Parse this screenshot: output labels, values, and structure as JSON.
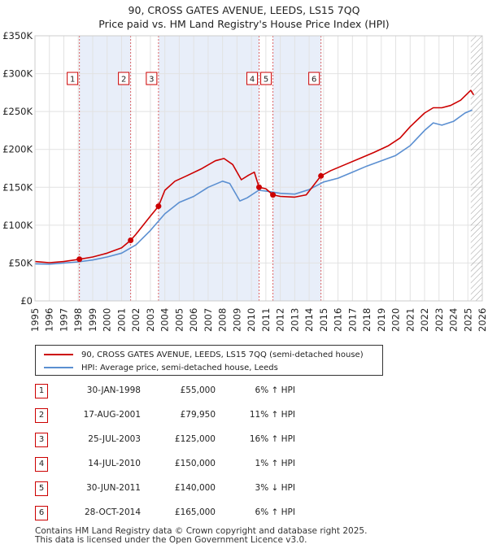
{
  "title": "90, CROSS GATES AVENUE, LEEDS, LS15 7QQ",
  "subtitle": "Price paid vs. HM Land Registry's House Price Index (HPI)",
  "chart_data": {
    "type": "line",
    "title": "90, CROSS GATES AVENUE, LEEDS, LS15 7QQ",
    "subtitle": "Price paid vs. HM Land Registry's House Price Index (HPI)",
    "xlim": [
      1995,
      2026
    ],
    "ylim": [
      0,
      350000
    ],
    "yticks": [
      0,
      50000,
      100000,
      150000,
      200000,
      250000,
      300000,
      350000
    ],
    "ytick_labels": [
      "£0",
      "£50K",
      "£100K",
      "£150K",
      "£200K",
      "£250K",
      "£300K",
      "£350K"
    ],
    "xticks": [
      1995,
      1996,
      1997,
      1998,
      1999,
      2000,
      2001,
      2002,
      2003,
      2004,
      2005,
      2006,
      2007,
      2008,
      2009,
      2010,
      2011,
      2012,
      2013,
      2014,
      2015,
      2016,
      2017,
      2018,
      2019,
      2020,
      2021,
      2022,
      2023,
      2024,
      2025,
      2026
    ],
    "grid": true,
    "hatch_from": 2025.2,
    "shaded_periods": [
      [
        1998.08,
        2001.63
      ],
      [
        2003.56,
        2010.53
      ],
      [
        2011.49,
        2014.82
      ]
    ],
    "series": [
      {
        "name": "90, CROSS GATES AVENUE, LEEDS, LS15 7QQ (semi-detached house)",
        "color": "#cc0000",
        "points": [
          [
            1995,
            52000
          ],
          [
            1996,
            50500
          ],
          [
            1997,
            52000
          ],
          [
            1998.08,
            55000
          ],
          [
            1999,
            58000
          ],
          [
            2000,
            63000
          ],
          [
            2001,
            70000
          ],
          [
            2001.63,
            79950
          ],
          [
            2002,
            88000
          ],
          [
            2003,
            112000
          ],
          [
            2003.56,
            125000
          ],
          [
            2004,
            146000
          ],
          [
            2004.7,
            158000
          ],
          [
            2005.5,
            165000
          ],
          [
            2006.5,
            174000
          ],
          [
            2007.5,
            185000
          ],
          [
            2008.1,
            188000
          ],
          [
            2008.7,
            180000
          ],
          [
            2009.3,
            160000
          ],
          [
            2009.8,
            166000
          ],
          [
            2010.2,
            170000
          ],
          [
            2010.53,
            150000
          ],
          [
            2011,
            148000
          ],
          [
            2011.49,
            140000
          ],
          [
            2012,
            138000
          ],
          [
            2013,
            137000
          ],
          [
            2013.8,
            140000
          ],
          [
            2014.82,
            165000
          ],
          [
            2015.5,
            172000
          ],
          [
            2016.5,
            180000
          ],
          [
            2017.5,
            188000
          ],
          [
            2018.5,
            196000
          ],
          [
            2019.5,
            205000
          ],
          [
            2020.3,
            215000
          ],
          [
            2021,
            230000
          ],
          [
            2022,
            248000
          ],
          [
            2022.6,
            255000
          ],
          [
            2023.2,
            255000
          ],
          [
            2023.8,
            258000
          ],
          [
            2024.5,
            265000
          ],
          [
            2025.2,
            278000
          ],
          [
            2025.4,
            272000
          ]
        ]
      },
      {
        "name": "HPI: Average price, semi-detached house, Leeds",
        "color": "#5b8fd1",
        "points": [
          [
            1995,
            49000
          ],
          [
            1996,
            48500
          ],
          [
            1997,
            50000
          ],
          [
            1998,
            51500
          ],
          [
            1999,
            54000
          ],
          [
            2000,
            58000
          ],
          [
            2001,
            63000
          ],
          [
            2002,
            74000
          ],
          [
            2003,
            93000
          ],
          [
            2004,
            115000
          ],
          [
            2005,
            130000
          ],
          [
            2006,
            138000
          ],
          [
            2007,
            150000
          ],
          [
            2008,
            158000
          ],
          [
            2008.5,
            155000
          ],
          [
            2009.2,
            132000
          ],
          [
            2009.7,
            136000
          ],
          [
            2010.5,
            146000
          ],
          [
            2011,
            145000
          ],
          [
            2012,
            142000
          ],
          [
            2013,
            141000
          ],
          [
            2014,
            147000
          ],
          [
            2015,
            157000
          ],
          [
            2016,
            162000
          ],
          [
            2017,
            170000
          ],
          [
            2018,
            178000
          ],
          [
            2019,
            185000
          ],
          [
            2020,
            192000
          ],
          [
            2021,
            205000
          ],
          [
            2022,
            225000
          ],
          [
            2022.6,
            235000
          ],
          [
            2023.2,
            232000
          ],
          [
            2024,
            237000
          ],
          [
            2024.8,
            248000
          ],
          [
            2025.3,
            252000
          ]
        ]
      }
    ],
    "sales": [
      {
        "label": "1",
        "x": 1998.08,
        "price": 55000
      },
      {
        "label": "2",
        "x": 2001.63,
        "price": 79950
      },
      {
        "label": "3",
        "x": 2003.56,
        "price": 125000
      },
      {
        "label": "4",
        "x": 2010.53,
        "price": 150000
      },
      {
        "label": "5",
        "x": 2011.49,
        "price": 140000
      },
      {
        "label": "6",
        "x": 2014.82,
        "price": 165000
      }
    ]
  },
  "legend": {
    "property_label": "90, CROSS GATES AVENUE, LEEDS, LS15 7QQ (semi-detached house)",
    "hpi_label": "HPI: Average price, semi-detached house, Leeds",
    "property_color": "#cc0000",
    "hpi_color": "#5b8fd1"
  },
  "transactions": [
    {
      "num": "1",
      "date": "30-JAN-1998",
      "price": "£55,000",
      "hpi": "6% ↑ HPI"
    },
    {
      "num": "2",
      "date": "17-AUG-2001",
      "price": "£79,950",
      "hpi": "11% ↑ HPI"
    },
    {
      "num": "3",
      "date": "25-JUL-2003",
      "price": "£125,000",
      "hpi": "16% ↑ HPI"
    },
    {
      "num": "4",
      "date": "14-JUL-2010",
      "price": "£150,000",
      "hpi": "1% ↑ HPI"
    },
    {
      "num": "5",
      "date": "30-JUN-2011",
      "price": "£140,000",
      "hpi": "3% ↓ HPI"
    },
    {
      "num": "6",
      "date": "28-OCT-2014",
      "price": "£165,000",
      "hpi": "6% ↑ HPI"
    }
  ],
  "footer": {
    "line1": "Contains HM Land Registry data © Crown copyright and database right 2025.",
    "line2": "This data is licensed under the Open Government Licence v3.0."
  }
}
